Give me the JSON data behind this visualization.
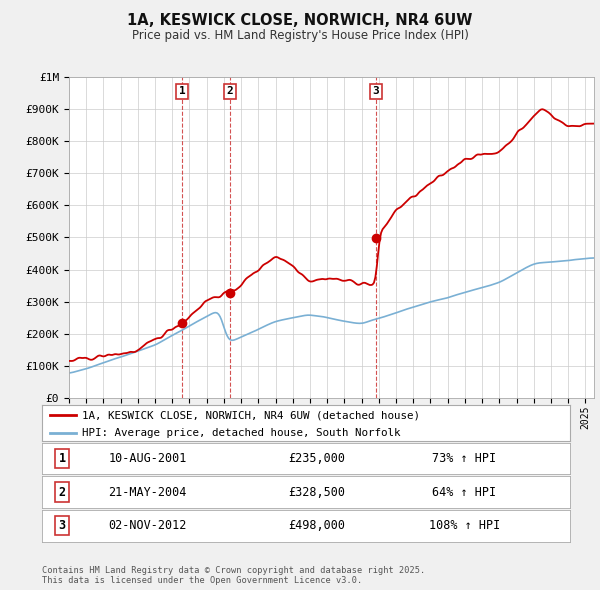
{
  "title": "1A, KESWICK CLOSE, NORWICH, NR4 6UW",
  "subtitle": "Price paid vs. HM Land Registry's House Price Index (HPI)",
  "bg_color": "#f0f0f0",
  "plot_bg_color": "#ffffff",
  "hpi_color": "#7ab0d4",
  "price_color": "#cc0000",
  "yticks": [
    0,
    100000,
    200000,
    300000,
    400000,
    500000,
    600000,
    700000,
    800000,
    900000,
    1000000
  ],
  "ytick_labels": [
    "£0",
    "£100K",
    "£200K",
    "£300K",
    "£400K",
    "£500K",
    "£600K",
    "£700K",
    "£800K",
    "£900K",
    "£1M"
  ],
  "sale_prices": [
    235000,
    328500,
    498000
  ],
  "sale_labels": [
    "1",
    "2",
    "3"
  ],
  "sale_hpi_pct": [
    "73% ↑ HPI",
    "64% ↑ HPI",
    "108% ↑ HPI"
  ],
  "sale_date_str": [
    "10-AUG-2001",
    "21-MAY-2004",
    "02-NOV-2012"
  ],
  "sale_price_str": [
    "£235,000",
    "£328,500",
    "£498,000"
  ],
  "legend_label_price": "1A, KESWICK CLOSE, NORWICH, NR4 6UW (detached house)",
  "legend_label_hpi": "HPI: Average price, detached house, South Norfolk",
  "footer": "Contains HM Land Registry data © Crown copyright and database right 2025.\nThis data is licensed under the Open Government Licence v3.0.",
  "xmin": 1995.0,
  "xmax": 2025.5
}
